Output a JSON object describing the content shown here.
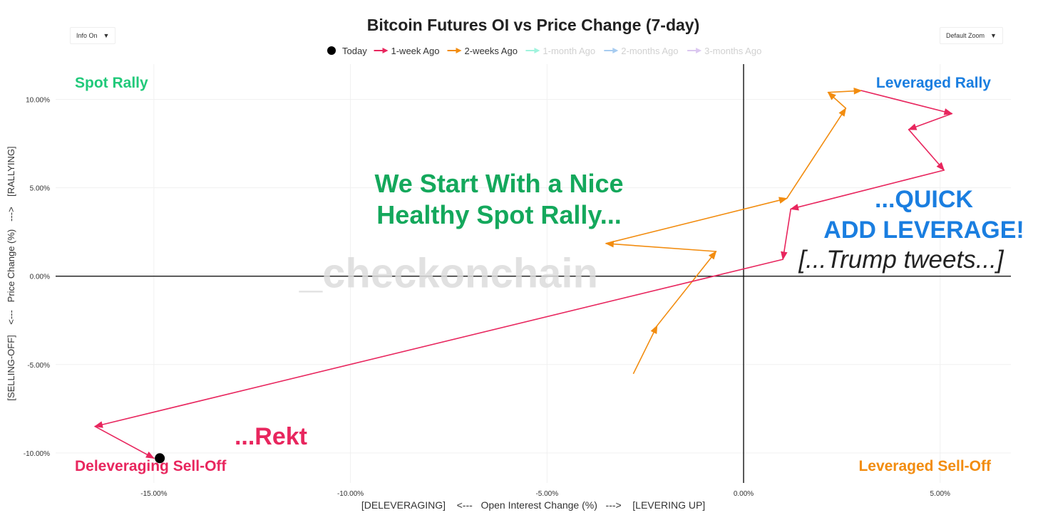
{
  "controls": {
    "info_label": "Info On",
    "zoom_label": "Default Zoom",
    "dropdown_glyph": "▼"
  },
  "watermark": "_checkonchain",
  "chart_data": {
    "type": "line",
    "title": "Bitcoin Futures OI vs Price Change (7-day)",
    "xlabel": "[DELEVERAGING]    <---   Open Interest Change (%)   --->    [LEVERING UP]",
    "ylabel": "[SELLING-OFF]    <---   Price Change (%)   --->    [RALLYING]",
    "xlim": [
      -17.5,
      6.8
    ],
    "ylim": [
      -11.7,
      12.0
    ],
    "x_ticks": [
      -15,
      -10,
      -5,
      0,
      5
    ],
    "x_tick_labels": [
      "-15.00%",
      "-10.00%",
      "-5.00%",
      "0.00%",
      "5.00%"
    ],
    "y_ticks": [
      -10,
      -5,
      0,
      5,
      10
    ],
    "y_tick_labels": [
      "-10.00%",
      "-5.00%",
      "0.00%",
      "5.00%",
      "10.00%"
    ],
    "grid": true,
    "legend_position": "top-center",
    "legend": [
      {
        "name": "Today",
        "color": "#000000",
        "marker": "dot",
        "faded": false
      },
      {
        "name": "1-week Ago",
        "color": "#e8265e",
        "marker": "arrow",
        "faded": false
      },
      {
        "name": "2-weeks Ago",
        "color": "#f28c0f",
        "marker": "arrow",
        "faded": false
      },
      {
        "name": "1-month Ago",
        "color": "#2ee6b6",
        "marker": "arrow",
        "faded": true
      },
      {
        "name": "2-months Ago",
        "color": "#3d8fe0",
        "marker": "arrow",
        "faded": true
      },
      {
        "name": "3-months Ago",
        "color": "#b084e0",
        "marker": "arrow",
        "faded": true
      }
    ],
    "series": [
      {
        "name": "2-weeks Ago",
        "color": "#f28c0f",
        "points": [
          {
            "x": -2.8,
            "y": -5.5
          },
          {
            "x": -2.2,
            "y": -2.8
          },
          {
            "x": -0.7,
            "y": 1.4
          },
          {
            "x": -3.5,
            "y": 1.85
          },
          {
            "x": 1.1,
            "y": 4.4
          },
          {
            "x": 2.6,
            "y": 9.5
          },
          {
            "x": 2.15,
            "y": 10.4
          },
          {
            "x": 3.0,
            "y": 10.5
          }
        ]
      },
      {
        "name": "1-week Ago",
        "color": "#e8265e",
        "points": [
          {
            "x": 3.0,
            "y": 10.5
          },
          {
            "x": 5.3,
            "y": 9.2
          },
          {
            "x": 4.2,
            "y": 8.3
          },
          {
            "x": 5.1,
            "y": 6.0
          },
          {
            "x": 1.2,
            "y": 3.8
          },
          {
            "x": 1.0,
            "y": 0.95
          },
          {
            "x": -16.5,
            "y": -8.5
          },
          {
            "x": -15.0,
            "y": -10.3
          }
        ]
      }
    ],
    "today_point": {
      "x": -14.85,
      "y": -10.3,
      "color": "#000000"
    },
    "quadrant_labels": [
      {
        "text": "Spot Rally",
        "color": "#21c97a",
        "pos": "top-left"
      },
      {
        "text": "Leveraged Rally",
        "color": "#1a7ee0",
        "pos": "top-right"
      },
      {
        "text": "Deleveraging Sell-Off",
        "color": "#e8265e",
        "pos": "bottom-left"
      },
      {
        "text": "Leveraged Sell-Off",
        "color": "#f28c0f",
        "pos": "bottom-right"
      }
    ],
    "annotations": [
      {
        "text": "We Start With a Nice",
        "color": "#14a85c"
      },
      {
        "text": "Healthy Spot Rally...",
        "color": "#14a85c"
      },
      {
        "text": "...QUICK",
        "color": "#1a7ee0"
      },
      {
        "text": "ADD LEVERAGE!",
        "color": "#1a7ee0"
      },
      {
        "text": "[...Trump tweets...]",
        "color": "#222222"
      },
      {
        "text": "...Rekt",
        "color": "#e8265e"
      }
    ]
  }
}
